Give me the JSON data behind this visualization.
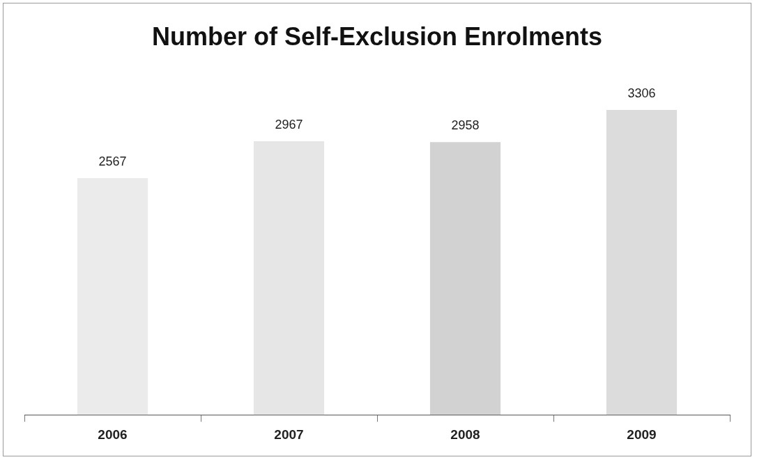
{
  "chart_data": {
    "type": "bar",
    "title": "Number of Self-Exclusion Enrolments",
    "categories": [
      "2006",
      "2007",
      "2008",
      "2009"
    ],
    "values": [
      2567,
      2967,
      2958,
      3306
    ],
    "colors": [
      "#ebebeb",
      "#e6e6e6",
      "#d2d2d2",
      "#dcdcdc"
    ],
    "data_labels": true,
    "grid": false,
    "legend": false,
    "tick_labels": "x"
  }
}
